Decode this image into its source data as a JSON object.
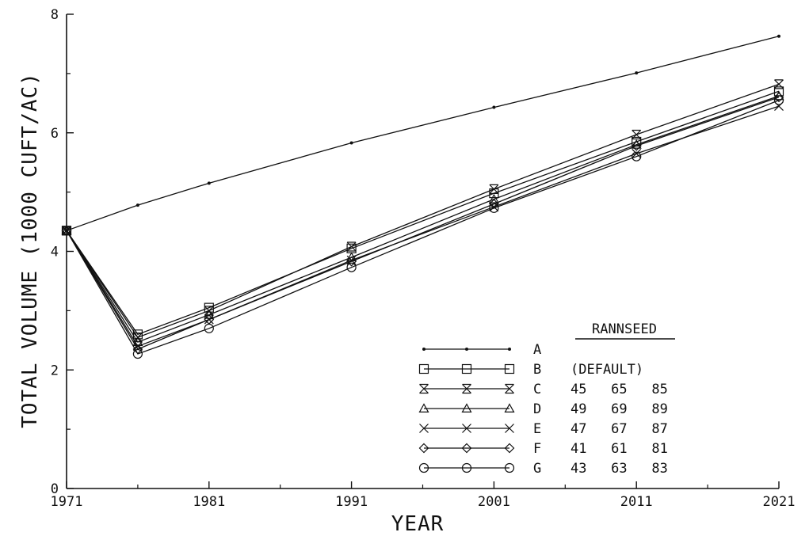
{
  "chart_data": {
    "type": "line",
    "xlabel": "YEAR",
    "ylabel": "TOTAL VOLUME (1000 CUFT/AC)",
    "xlim": [
      1971,
      2021
    ],
    "ylim": [
      0,
      8
    ],
    "x_ticks": [
      1971,
      1981,
      1991,
      2001,
      2011,
      2021
    ],
    "x_tick_labels": [
      "1971",
      "1981",
      "1991",
      "2001",
      "2011",
      "2021"
    ],
    "y_ticks": [
      0,
      2,
      4,
      6,
      8
    ],
    "y_tick_labels": [
      "0",
      "2",
      "4",
      "6",
      "8"
    ],
    "grid": false,
    "legend_position": "bottom-right",
    "legend_header": "RANNSEED",
    "x": [
      1971,
      1976,
      1981,
      1991,
      2001,
      2011,
      2021
    ],
    "series": [
      {
        "name": "A",
        "marker": "dot",
        "annotation": "",
        "values": [
          4.35,
          4.78,
          5.15,
          5.83,
          6.43,
          7.01,
          7.63
        ]
      },
      {
        "name": "B",
        "marker": "square",
        "annotation": "(DEFAULT)",
        "values": [
          4.35,
          2.6,
          3.05,
          4.05,
          4.98,
          5.85,
          6.7
        ]
      },
      {
        "name": "C",
        "marker": "x-bar",
        "annotation": "45   65   85",
        "values": [
          4.35,
          2.55,
          3.0,
          4.08,
          5.05,
          5.97,
          6.82
        ]
      },
      {
        "name": "D",
        "marker": "triangle",
        "annotation": "49   69   89",
        "values": [
          4.35,
          2.47,
          2.93,
          3.9,
          4.88,
          5.8,
          6.62
        ]
      },
      {
        "name": "E",
        "marker": "x",
        "annotation": "47   67   87",
        "values": [
          4.35,
          2.4,
          2.85,
          3.85,
          4.75,
          5.65,
          6.45
        ]
      },
      {
        "name": "F",
        "marker": "diamond",
        "annotation": "41   61   81",
        "values": [
          4.35,
          2.35,
          2.85,
          3.83,
          4.8,
          5.78,
          6.6
        ]
      },
      {
        "name": "G",
        "marker": "circle",
        "annotation": "43   63   83",
        "values": [
          4.35,
          2.27,
          2.7,
          3.73,
          4.73,
          5.6,
          6.55
        ]
      }
    ]
  }
}
